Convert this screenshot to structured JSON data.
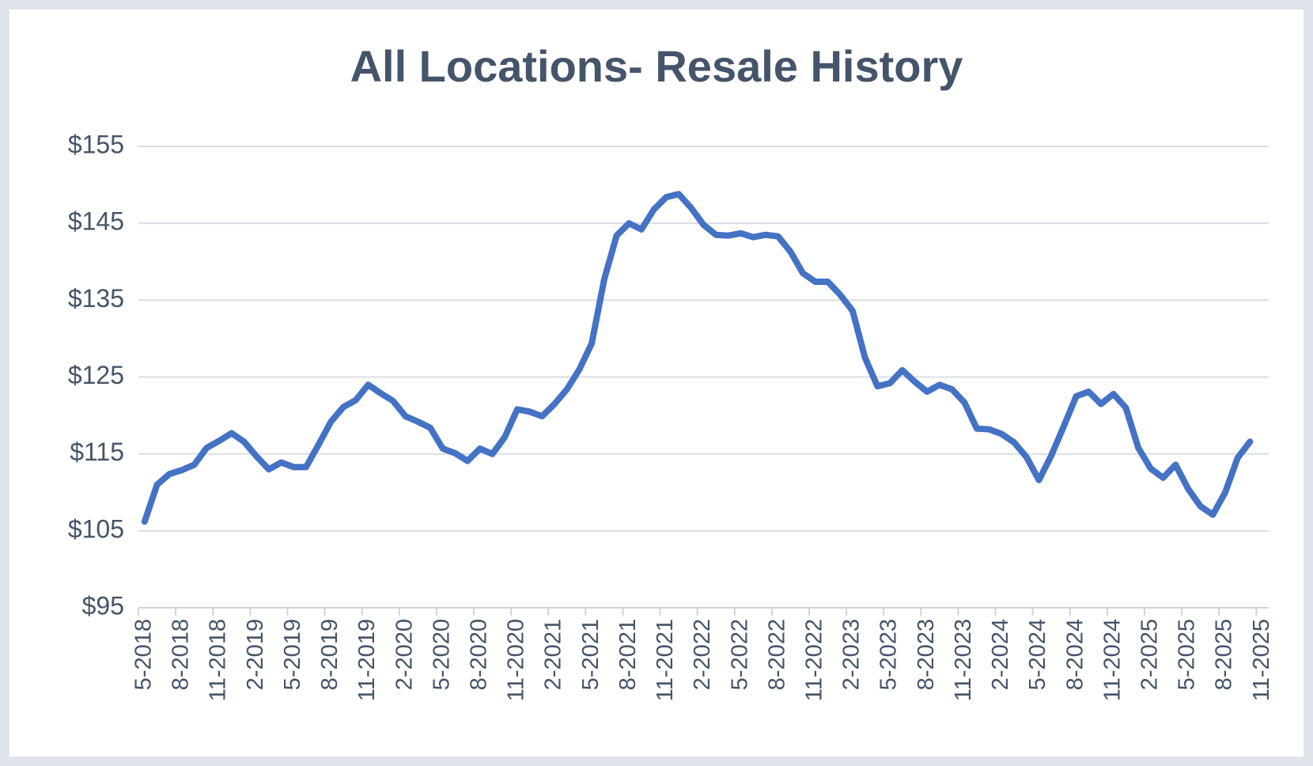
{
  "chart_data": {
    "type": "line",
    "title": "All Locations- Resale History",
    "categories": [
      "5-2018",
      null,
      null,
      "8-2018",
      null,
      null,
      "11-2018",
      null,
      null,
      "2-2019",
      null,
      null,
      "5-2019",
      null,
      null,
      "8-2019",
      null,
      null,
      "11-2019",
      null,
      null,
      "2-2020",
      null,
      null,
      "5-2020",
      null,
      null,
      "8-2020",
      null,
      null,
      "11-2020",
      null,
      null,
      "2-2021",
      null,
      null,
      "5-2021",
      null,
      null,
      "8-2021",
      null,
      null,
      "11-2021",
      null,
      null,
      "2-2022",
      null,
      null,
      "5-2022",
      null,
      null,
      "8-2022",
      null,
      null,
      "11-2022",
      null,
      null,
      "2-2023",
      null,
      null,
      "5-2023",
      null,
      null,
      "8-2023",
      null,
      null,
      "11-2023",
      null,
      null,
      "2-2024",
      null,
      null,
      "5-2024",
      null,
      null,
      "8-2024",
      null,
      null,
      "11-2024",
      null,
      null,
      "2-2025",
      null,
      null,
      "5-2025",
      null,
      null,
      "8-2025",
      null,
      null,
      "11-2025"
    ],
    "series": [
      {
        "name": "Resale",
        "color": "#4472c4",
        "values": [
          106.2,
          111,
          112.4,
          112.9,
          113.6,
          115.8,
          116.7,
          117.7,
          116.6,
          114.7,
          113,
          113.9,
          113.3,
          113.3,
          116.2,
          119.2,
          121.1,
          122,
          124,
          122.9,
          121.9,
          119.9,
          119.2,
          118.4,
          115.7,
          115.1,
          114.1,
          115.7,
          115,
          117.2,
          120.8,
          120.5,
          119.9,
          121.5,
          123.4,
          126,
          129.4,
          137.7,
          143.4,
          145,
          144.2,
          146.8,
          148.4,
          148.8,
          147,
          144.8,
          143.5,
          143.4,
          143.7,
          143.2,
          143.5,
          143.3,
          141.3,
          138.5,
          137.4,
          137.4,
          135.7,
          133.6,
          127.5,
          123.8,
          124.2,
          125.9,
          124.4,
          123.1,
          124,
          123.4,
          121.7,
          118.3,
          118.2,
          117.6,
          116.5,
          114.6,
          111.6,
          114.8,
          118.6,
          122.5,
          123.1,
          121.5,
          122.8,
          121,
          115.8,
          113.1,
          111.9,
          113.6,
          110.5,
          108.2,
          107.1,
          110,
          114.5,
          116.6,
          null
        ]
      }
    ],
    "ylim": [
      95,
      155
    ],
    "yticks": [
      {
        "value": 95,
        "label": "$95"
      },
      {
        "value": 105,
        "label": "$105"
      },
      {
        "value": 115,
        "label": "$115"
      },
      {
        "value": 125,
        "label": "$125"
      },
      {
        "value": 135,
        "label": "$135"
      },
      {
        "value": 145,
        "label": "$145"
      },
      {
        "value": 155,
        "label": "$155"
      }
    ],
    "grid": true
  }
}
